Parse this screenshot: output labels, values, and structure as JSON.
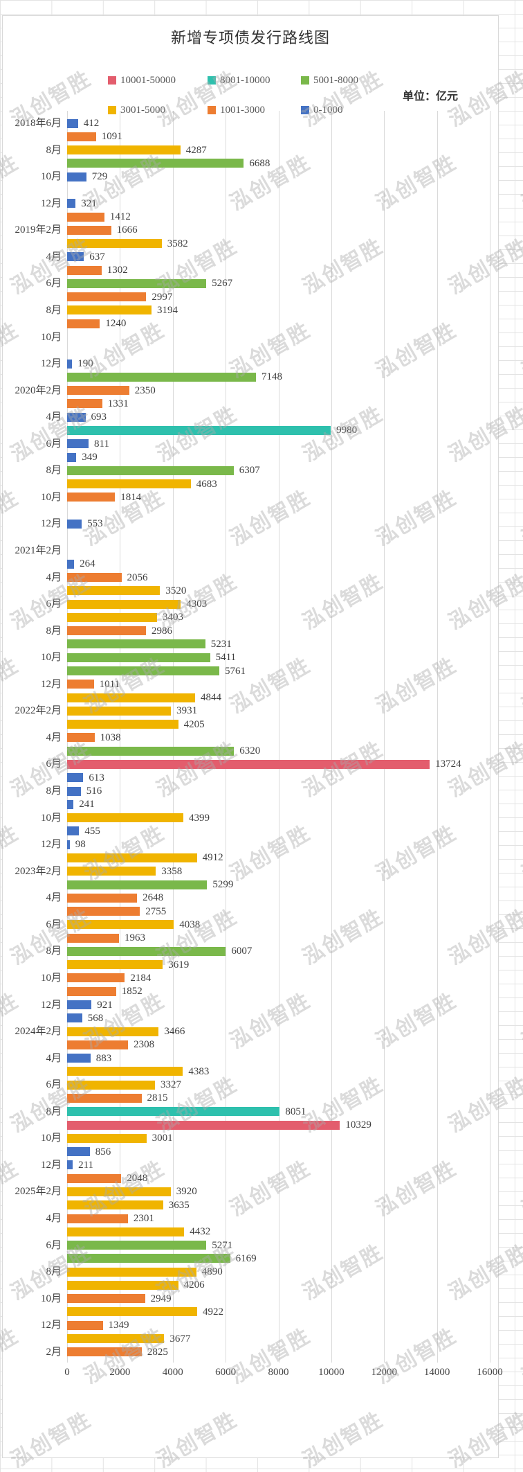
{
  "watermark": {
    "text": "泓创智胜"
  },
  "chart_data": {
    "type": "bar",
    "orientation": "horizontal",
    "title": "新增专项债发行路线图",
    "unit_label": "单位：亿元",
    "xlabel": "",
    "ylabel": "",
    "xlim": [
      0,
      16000
    ],
    "x_ticks": [
      0,
      2000,
      4000,
      6000,
      8000,
      10000,
      12000,
      14000,
      16000
    ],
    "grid": "vertical-on",
    "legend_position": "top",
    "legend": [
      {
        "label": "10001-50000",
        "color": "#e35d6d",
        "min": 10001,
        "max": 50000
      },
      {
        "label": "8001-10000",
        "color": "#2ec0ad",
        "min": 8001,
        "max": 10000
      },
      {
        "label": "5001-8000",
        "color": "#7ab84a",
        "min": 5001,
        "max": 8000
      },
      {
        "label": "3001-5000",
        "color": "#f0b400",
        "min": 3001,
        "max": 5000
      },
      {
        "label": "1001-3000",
        "color": "#ed7d31",
        "min": 1001,
        "max": 3000
      },
      {
        "label": "0-1000",
        "color": "#4472c4",
        "min": 0,
        "max": 1000
      }
    ],
    "rows": [
      {
        "label": "2018年6月",
        "value": 412
      },
      {
        "label": "",
        "value": 1091
      },
      {
        "label": "8月",
        "value": 4287
      },
      {
        "label": "",
        "value": 6688
      },
      {
        "label": "10月",
        "value": 729
      },
      {
        "label": "",
        "value": null
      },
      {
        "label": "12月",
        "value": 321
      },
      {
        "label": "",
        "value": 1412
      },
      {
        "label": "2019年2月",
        "value": 1666
      },
      {
        "label": "",
        "value": 3582
      },
      {
        "label": "4月",
        "value": 637
      },
      {
        "label": "",
        "value": 1302
      },
      {
        "label": "6月",
        "value": 5267
      },
      {
        "label": "",
        "value": 2997
      },
      {
        "label": "8月",
        "value": 3194
      },
      {
        "label": "",
        "value": 1240
      },
      {
        "label": "10月",
        "value": null
      },
      {
        "label": "",
        "value": null
      },
      {
        "label": "12月",
        "value": 190
      },
      {
        "label": "",
        "value": 7148
      },
      {
        "label": "2020年2月",
        "value": 2350
      },
      {
        "label": "",
        "value": 1331
      },
      {
        "label": "4月",
        "value": 693
      },
      {
        "label": "",
        "value": 9980
      },
      {
        "label": "6月",
        "value": 811
      },
      {
        "label": "",
        "value": 349
      },
      {
        "label": "8月",
        "value": 6307
      },
      {
        "label": "",
        "value": 4683
      },
      {
        "label": "10月",
        "value": 1814
      },
      {
        "label": "",
        "value": null
      },
      {
        "label": "12月",
        "value": 553
      },
      {
        "label": "",
        "value": null
      },
      {
        "label": "2021年2月",
        "value": null
      },
      {
        "label": "",
        "value": 264
      },
      {
        "label": "4月",
        "value": 2056
      },
      {
        "label": "",
        "value": 3520
      },
      {
        "label": "6月",
        "value": 4303
      },
      {
        "label": "",
        "value": 3403
      },
      {
        "label": "8月",
        "value": 2986
      },
      {
        "label": "",
        "value": 5231
      },
      {
        "label": "10月",
        "value": 5411
      },
      {
        "label": "",
        "value": 5761
      },
      {
        "label": "12月",
        "value": 1011
      },
      {
        "label": "",
        "value": 4844
      },
      {
        "label": "2022年2月",
        "value": 3931
      },
      {
        "label": "",
        "value": 4205
      },
      {
        "label": "4月",
        "value": 1038
      },
      {
        "label": "",
        "value": 6320
      },
      {
        "label": "6月",
        "value": 13724
      },
      {
        "label": "",
        "value": 613
      },
      {
        "label": "8月",
        "value": 516
      },
      {
        "label": "",
        "value": 241
      },
      {
        "label": "10月",
        "value": 4399
      },
      {
        "label": "",
        "value": 455
      },
      {
        "label": "12月",
        "value": 98
      },
      {
        "label": "",
        "value": 4912
      },
      {
        "label": "2023年2月",
        "value": 3358
      },
      {
        "label": "",
        "value": 5299
      },
      {
        "label": "4月",
        "value": 2648
      },
      {
        "label": "",
        "value": 2755
      },
      {
        "label": "6月",
        "value": 4038
      },
      {
        "label": "",
        "value": 1963
      },
      {
        "label": "8月",
        "value": 6007
      },
      {
        "label": "",
        "value": 3619
      },
      {
        "label": "10月",
        "value": 2184
      },
      {
        "label": "",
        "value": 1852
      },
      {
        "label": "12月",
        "value": 921
      },
      {
        "label": "",
        "value": 568
      },
      {
        "label": "2024年2月",
        "value": 3466
      },
      {
        "label": "",
        "value": 2308
      },
      {
        "label": "4月",
        "value": 883
      },
      {
        "label": "",
        "value": 4383
      },
      {
        "label": "6月",
        "value": 3327
      },
      {
        "label": "",
        "value": 2815
      },
      {
        "label": "8月",
        "value": 8051
      },
      {
        "label": "",
        "value": 10329
      },
      {
        "label": "10月",
        "value": 3001
      },
      {
        "label": "",
        "value": 856
      },
      {
        "label": "12月",
        "value": 211
      },
      {
        "label": "",
        "value": 2048
      },
      {
        "label": "2025年2月",
        "value": 3920
      },
      {
        "label": "",
        "value": 3635
      },
      {
        "label": "4月",
        "value": 2301
      },
      {
        "label": "",
        "value": 4432
      },
      {
        "label": "6月",
        "value": 5271
      },
      {
        "label": "",
        "value": 6169
      },
      {
        "label": "8月",
        "value": 4890
      },
      {
        "label": "",
        "value": 4206
      },
      {
        "label": "10月",
        "value": 2949
      },
      {
        "label": "",
        "value": 4922
      },
      {
        "label": "12月",
        "value": 1349
      },
      {
        "label": "",
        "value": 3677
      },
      {
        "label": "2月",
        "value": 2825
      }
    ]
  }
}
